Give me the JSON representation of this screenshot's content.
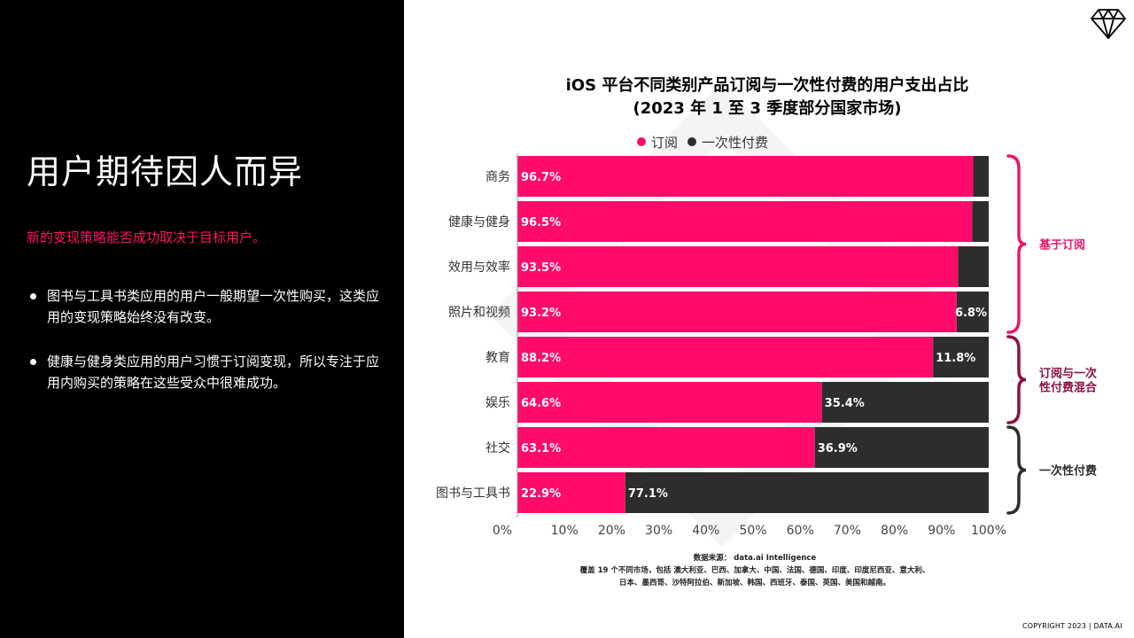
{
  "slide": {
    "title": "用户期待因人而异",
    "subtitle": "新的变现策略能否成功取决于目标用户。",
    "bullets": [
      "图书与工具书类应用的用户一般期望一次性购买，这类应用的变现策略始终没有改变。",
      "健康与健身类应用的用户习惯于订阅变现，所以专注于应用内购买的策略在这些受众中很难成功。"
    ],
    "copyright": "COPYRIGHT 2023 | DATA.AI",
    "logo_icon": "diamond-icon"
  },
  "chart_data": {
    "type": "bar",
    "orientation": "horizontal",
    "stacked": true,
    "title": [
      "iOS 平台不同类别产品订阅与一次性付费的用户支出占比",
      "(2023 年 1 至 3 季度部分国家市场)"
    ],
    "legend_position": "top",
    "categories": [
      "商务",
      "健康与健身",
      "效用与效率",
      "照片和视频",
      "教育",
      "娱乐",
      "社交",
      "图书与工具书"
    ],
    "series": [
      {
        "name": "订阅",
        "color": "#ff0b6b",
        "values": [
          96.7,
          96.5,
          93.5,
          93.2,
          88.2,
          64.6,
          63.1,
          22.9
        ],
        "labels": [
          "96.7%",
          "96.5%",
          "93.5%",
          "93.2%",
          "88.2%",
          "64.6%",
          "63.1%",
          "22.9%"
        ]
      },
      {
        "name": "一次性付费",
        "color": "#2d2d2d",
        "values": [
          3.3,
          3.5,
          6.5,
          6.8,
          11.8,
          35.4,
          36.9,
          77.1
        ],
        "labels": [
          "",
          "",
          "",
          "6.8%",
          "11.8%",
          "35.4%",
          "36.9%",
          "77.1%"
        ]
      }
    ],
    "x_ticks": [
      "0%",
      "10%",
      "20%",
      "30%",
      "40%",
      "50%",
      "60%",
      "70%",
      "80%",
      "90%",
      "100%"
    ],
    "xlim": [
      0,
      100
    ],
    "groups": [
      {
        "label": [
          "基于订阅"
        ],
        "color": "#e8186b",
        "first": 0,
        "last": 3
      },
      {
        "label": [
          "订阅与一次",
          "性付费混合"
        ],
        "color": "#8b1144",
        "first": 4,
        "last": 5
      },
      {
        "label": [
          "一次性付费"
        ],
        "color": "#2d2d2d",
        "first": 6,
        "last": 7
      }
    ],
    "source": [
      "数据来源： data.ai Intelligence",
      "覆盖 19 个不同市场，包括 澳大利亚、巴西、加拿大、中国、法国、德国、印度、印度尼西亚、意大利、",
      "日本、墨西哥、沙特阿拉伯、新加坡、韩国、西班牙、泰国、英国、美国和越南。"
    ]
  }
}
